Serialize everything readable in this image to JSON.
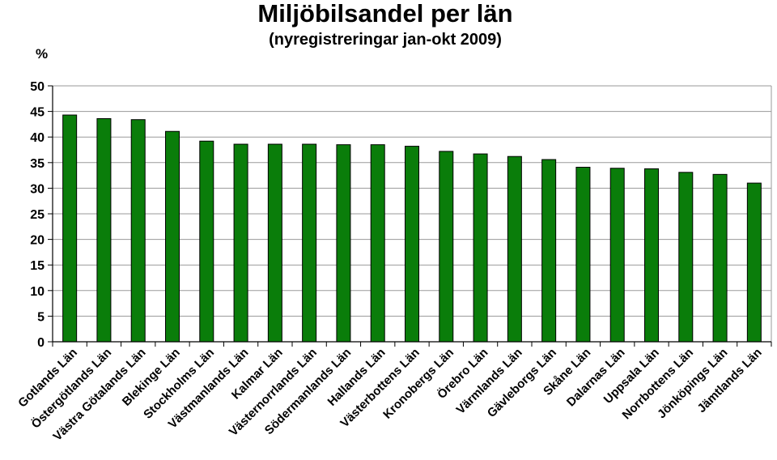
{
  "chart_data": {
    "type": "bar",
    "title": "Miljöbilsandel per län",
    "subtitle": "(nyregistreringar jan-okt 2009)",
    "ylabel": "%",
    "xlabel": "",
    "ylim": [
      0,
      50
    ],
    "yticks": [
      0,
      5,
      10,
      15,
      20,
      25,
      30,
      35,
      40,
      45,
      50
    ],
    "grid": true,
    "legend": "none",
    "bar_color": "#0a7d0a",
    "categories": [
      "Gotlands Län",
      "Östergötlands Län",
      "Västra Götalands Län",
      "Blekinge Län",
      "Stockholms Län",
      "Västmanlands Län",
      "Kalmar Län",
      "Västernorrlands Län",
      "Södermanlands Län",
      "Hallands Län",
      "Västerbottens Län",
      "Kronobergs Län",
      "Örebro Län",
      "Värmlands Län",
      "Gävleborgs Län",
      "Skåne Län",
      "Dalarnas Län",
      "Uppsala Län",
      "Norrbottens Län",
      "Jönköpings Län",
      "Jämtlands Län"
    ],
    "values": [
      44.3,
      43.6,
      43.4,
      41.1,
      39.2,
      38.6,
      38.6,
      38.6,
      38.5,
      38.5,
      38.2,
      37.2,
      36.7,
      36.2,
      35.6,
      34.1,
      33.9,
      33.8,
      33.1,
      32.7,
      31.0
    ]
  }
}
